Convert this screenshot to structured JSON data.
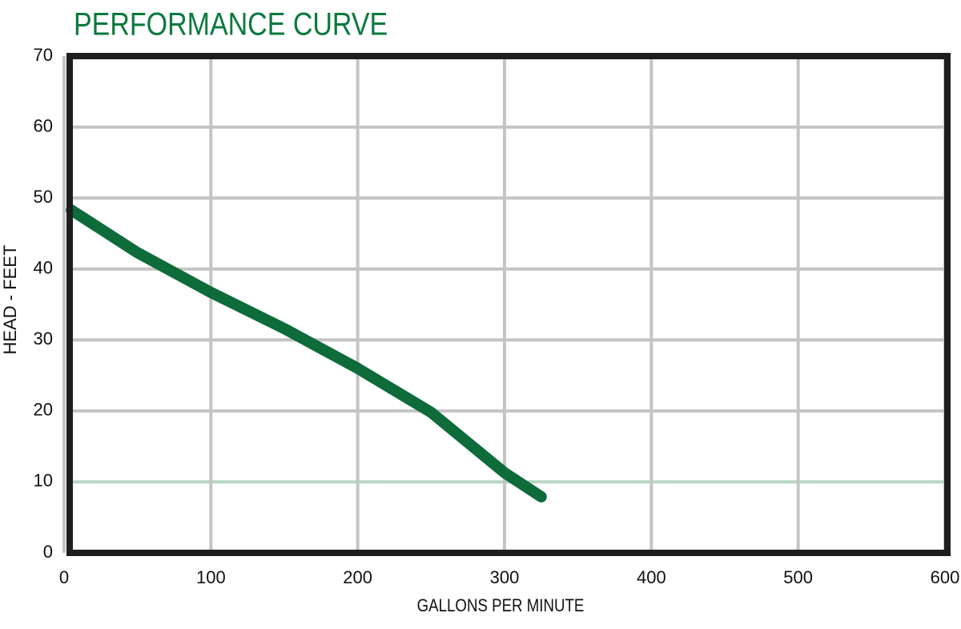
{
  "chart_data": {
    "type": "line",
    "title": "PERFORMANCE CURVE",
    "x_label": "GALLONS PER MINUTE",
    "y_label": "HEAD - FEET",
    "x": [
      5,
      50,
      100,
      150,
      200,
      250,
      300,
      325
    ],
    "series": [
      {
        "name": "Performance",
        "color": "#0e6b3a",
        "values": [
          48.3,
          42.3,
          36.7,
          31.6,
          26,
          19.8,
          11.3,
          7.9
        ]
      }
    ],
    "xlim": [
      0,
      600
    ],
    "xticks": [
      0,
      100,
      200,
      300,
      400,
      500,
      600
    ],
    "ylim": [
      0,
      70
    ],
    "yticks": [
      0,
      10,
      20,
      30,
      40,
      50,
      60,
      70
    ],
    "grid": true,
    "grid_color": "#c4c4c4",
    "reference_line": {
      "y": 10,
      "color": "#b7d6c4"
    },
    "title_color": "#0b7a3e",
    "frame_color": "#1e1e1e"
  }
}
